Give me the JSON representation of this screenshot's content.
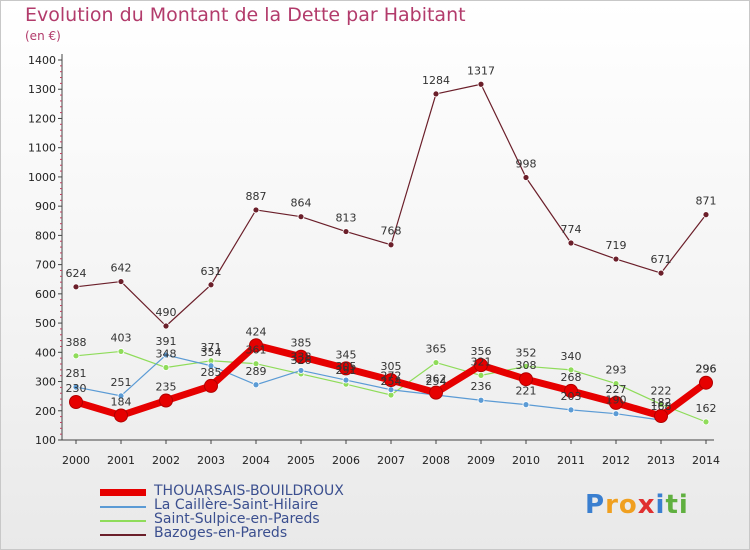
{
  "title": "Evolution du Montant de la Dette par Habitant",
  "unit": "(en €)",
  "logo": {
    "letters": [
      {
        "ch": "P",
        "color": "#3a7fd0"
      },
      {
        "ch": "r",
        "color": "#f0a020"
      },
      {
        "ch": "o",
        "color": "#f0a020"
      },
      {
        "ch": "x",
        "color": "#e03030"
      },
      {
        "ch": "i",
        "color": "#3a7fd0"
      },
      {
        "ch": "t",
        "color": "#60b040"
      },
      {
        "ch": "i",
        "color": "#60b040"
      }
    ]
  },
  "chart_data": {
    "type": "line",
    "title": "Evolution du Montant de la Dette par Habitant",
    "ylabel": "(en €)",
    "x": [
      2000,
      2001,
      2002,
      2003,
      2004,
      2005,
      2006,
      2007,
      2008,
      2009,
      2010,
      2011,
      2012,
      2013,
      2014
    ],
    "ylim": [
      100,
      1400
    ],
    "yticks": [
      100,
      200,
      300,
      400,
      500,
      600,
      700,
      800,
      900,
      1000,
      1100,
      1200,
      1300,
      1400
    ],
    "grid": false,
    "legend_position": "bottom-left",
    "series": [
      {
        "name": "THOUARSAIS-BOUILDROUX",
        "color": "#e60000",
        "values": [
          230,
          184,
          235,
          285,
          424,
          385,
          345,
          305,
          262,
          356,
          308,
          268,
          227,
          182,
          296
        ]
      },
      {
        "name": "La Caillère-Saint-Hilaire",
        "color": "#5b9bd5",
        "values": [
          281,
          251,
          391,
          354,
          289,
          338,
          305,
          272,
          254,
          236,
          221,
          203,
          190,
          168,
          296
        ]
      },
      {
        "name": "Saint-Sulpice-en-Pareds",
        "color": "#8fdc5a",
        "values": [
          388,
          403,
          348,
          371,
          361,
          326,
          291,
          254,
          365,
          321,
          352,
          340,
          293,
          222,
          162
        ]
      },
      {
        "name": "Bazoges-en-Pareds",
        "color": "#6b1f2a",
        "values": [
          624,
          642,
          490,
          631,
          887,
          864,
          813,
          768,
          1284,
          1317,
          998,
          774,
          719,
          671,
          871
        ]
      }
    ]
  }
}
